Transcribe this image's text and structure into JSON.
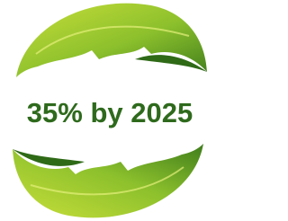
{
  "badge": {
    "text": "35% by 2025"
  }
}
